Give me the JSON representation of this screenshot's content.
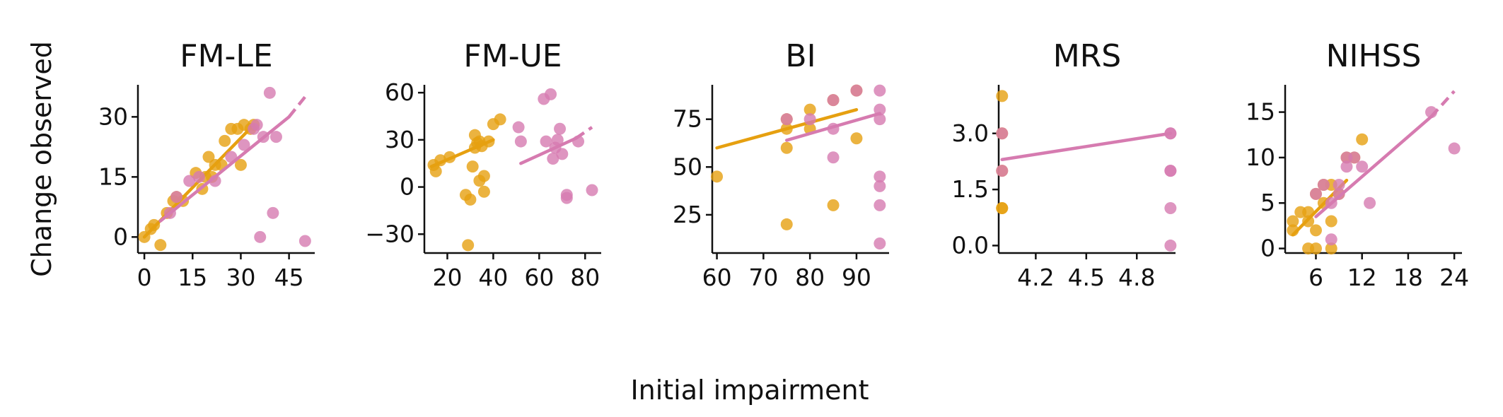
{
  "figure": {
    "xlabel": "Initial impairment",
    "ylabel": "Change observed"
  },
  "colors": {
    "group_a": "#E6A010",
    "group_b": "#D67BB0"
  },
  "chart_data": [
    {
      "type": "scatter",
      "title": "FM-LE",
      "xlim": [
        -2,
        53
      ],
      "ylim": [
        -4,
        38
      ],
      "xticks": [
        0,
        15,
        30,
        45
      ],
      "yticks": [
        0,
        15,
        30
      ],
      "series": [
        {
          "points": [
            [
              0,
              0
            ],
            [
              2,
              2
            ],
            [
              3,
              3
            ],
            [
              5,
              -2
            ],
            [
              7,
              6
            ],
            [
              9,
              9
            ],
            [
              10,
              10
            ],
            [
              12,
              9
            ],
            [
              16,
              16
            ],
            [
              18,
              12
            ],
            [
              19,
              15
            ],
            [
              20,
              20
            ],
            [
              21,
              15
            ],
            [
              22,
              18
            ],
            [
              24,
              18
            ],
            [
              25,
              24
            ],
            [
              27,
              27
            ],
            [
              29,
              27
            ],
            [
              30,
              18
            ],
            [
              31,
              28
            ],
            [
              33,
              27
            ],
            [
              34,
              28
            ]
          ],
          "fit": {
            "x": [
              0,
              34
            ],
            "y": [
              0,
              28
            ],
            "dashed_to": null
          }
        },
        {
          "points": [
            [
              8,
              6
            ],
            [
              10,
              10
            ],
            [
              14,
              14
            ],
            [
              17,
              15
            ],
            [
              22,
              14
            ],
            [
              27,
              20
            ],
            [
              31,
              23
            ],
            [
              34,
              27
            ],
            [
              35,
              28
            ],
            [
              37,
              25
            ],
            [
              39,
              36
            ],
            [
              40,
              6
            ],
            [
              41,
              25
            ],
            [
              36,
              0
            ],
            [
              50,
              -1
            ]
          ],
          "fit": {
            "x": [
              5,
              45
            ],
            "y": [
              4,
              30
            ],
            "dashed_to": [
              50,
              35
            ]
          }
        }
      ]
    },
    {
      "type": "scatter",
      "title": "FM-UE",
      "xlim": [
        10,
        87
      ],
      "ylim": [
        -42,
        65
      ],
      "xticks": [
        20,
        40,
        60,
        80
      ],
      "yticks": [
        -30,
        0,
        30,
        60
      ],
      "series": [
        {
          "points": [
            [
              14,
              14
            ],
            [
              15,
              10
            ],
            [
              17,
              17
            ],
            [
              21,
              19
            ],
            [
              28,
              -5
            ],
            [
              29,
              -37
            ],
            [
              30,
              -8
            ],
            [
              31,
              13
            ],
            [
              32,
              33
            ],
            [
              32,
              25
            ],
            [
              33,
              28
            ],
            [
              34,
              4
            ],
            [
              34,
              29
            ],
            [
              35,
              26
            ],
            [
              36,
              -3
            ],
            [
              36,
              7
            ],
            [
              38,
              29
            ],
            [
              40,
              40
            ],
            [
              43,
              43
            ]
          ],
          "fit": {
            "x": [
              13,
              40
            ],
            "y": [
              13,
              30
            ],
            "dashed_to": null
          }
        },
        {
          "points": [
            [
              51,
              38
            ],
            [
              52,
              29
            ],
            [
              62,
              56
            ],
            [
              63,
              29
            ],
            [
              65,
              59
            ],
            [
              66,
              18
            ],
            [
              67,
              25
            ],
            [
              68,
              30
            ],
            [
              69,
              37
            ],
            [
              70,
              21
            ],
            [
              72,
              -5
            ],
            [
              72,
              -7
            ],
            [
              77,
              29
            ],
            [
              83,
              -2
            ]
          ],
          "fit": {
            "x": [
              52,
              76
            ],
            "y": [
              15,
              31
            ],
            "dashed_to": [
              83,
              38
            ]
          }
        }
      ]
    },
    {
      "type": "scatter",
      "title": "BI",
      "xlim": [
        59,
        97
      ],
      "ylim": [
        5,
        93
      ],
      "xticks": [
        60,
        70,
        80,
        90
      ],
      "yticks": [
        25,
        50,
        75
      ],
      "series": [
        {
          "points": [
            [
              60,
              45
            ],
            [
              75,
              20
            ],
            [
              75,
              75
            ],
            [
              75,
              70
            ],
            [
              75,
              60
            ],
            [
              80,
              80
            ],
            [
              80,
              70
            ],
            [
              85,
              30
            ],
            [
              85,
              85
            ],
            [
              90,
              90
            ],
            [
              90,
              65
            ]
          ],
          "fit": {
            "x": [
              60,
              90
            ],
            "y": [
              60,
              80
            ],
            "dashed_to": null
          }
        },
        {
          "points": [
            [
              75,
              75
            ],
            [
              80,
              75
            ],
            [
              85,
              55
            ],
            [
              85,
              85
            ],
            [
              85,
              70
            ],
            [
              90,
              90
            ],
            [
              95,
              90
            ],
            [
              95,
              80
            ],
            [
              95,
              75
            ],
            [
              95,
              45
            ],
            [
              95,
              40
            ],
            [
              95,
              30
            ],
            [
              95,
              10
            ]
          ],
          "fit": {
            "x": [
              75,
              95
            ],
            "y": [
              64,
              78
            ],
            "dashed_to": null
          }
        }
      ]
    },
    {
      "type": "scatter",
      "title": "MRS",
      "xlim": [
        3.98,
        5.03
      ],
      "ylim": [
        -0.2,
        4.3
      ],
      "xticks": [
        4.2,
        4.5,
        4.8
      ],
      "xtick_labels": [
        "4.2",
        "4.5",
        "4.8"
      ],
      "yticks": [
        0.0,
        1.5,
        3.0
      ],
      "ytick_labels": [
        "0.0",
        "1.5",
        "3.0"
      ],
      "series": [
        {
          "points": [
            [
              4,
              4
            ],
            [
              4,
              3
            ],
            [
              4,
              2
            ],
            [
              4,
              1
            ],
            [
              4,
              1
            ]
          ],
          "fit": null
        },
        {
          "points": [
            [
              4,
              3
            ],
            [
              4,
              2
            ],
            [
              5,
              3
            ],
            [
              5,
              2
            ],
            [
              5,
              2
            ],
            [
              5,
              1
            ],
            [
              5,
              0
            ],
            [
              5,
              3
            ]
          ],
          "fit": {
            "x": [
              4,
              5
            ],
            "y": [
              2.3,
              3.0
            ],
            "dashed_to": null
          }
        }
      ]
    },
    {
      "type": "scatter",
      "title": "NIHSS",
      "xlim": [
        2,
        25
      ],
      "ylim": [
        -0.5,
        18
      ],
      "xticks": [
        6,
        12,
        18,
        24
      ],
      "yticks": [
        0,
        5,
        10,
        15
      ],
      "series": [
        {
          "points": [
            [
              3,
              2
            ],
            [
              3,
              3
            ],
            [
              4,
              4
            ],
            [
              5,
              0
            ],
            [
              5,
              3
            ],
            [
              5,
              4
            ],
            [
              6,
              2
            ],
            [
              6,
              0
            ],
            [
              6,
              6
            ],
            [
              7,
              5
            ],
            [
              7,
              7
            ],
            [
              8,
              7
            ],
            [
              8,
              3
            ],
            [
              8,
              0
            ],
            [
              9,
              6
            ],
            [
              10,
              10
            ],
            [
              11,
              10
            ],
            [
              12,
              12
            ]
          ],
          "fit": {
            "x": [
              3,
              10
            ],
            "y": [
              1.5,
              7.5
            ],
            "dashed_to": null
          }
        },
        {
          "points": [
            [
              6,
              6
            ],
            [
              7,
              7
            ],
            [
              8,
              1
            ],
            [
              9,
              7
            ],
            [
              9,
              6
            ],
            [
              10,
              9
            ],
            [
              10,
              10
            ],
            [
              11,
              10
            ],
            [
              12,
              9
            ],
            [
              13,
              5
            ],
            [
              21,
              15
            ],
            [
              24,
              11
            ],
            [
              8,
              5
            ]
          ],
          "fit": {
            "x": [
              6,
              21
            ],
            "y": [
              3.5,
              14.5
            ],
            "dashed_to": [
              24,
              17.3
            ]
          }
        }
      ]
    }
  ]
}
